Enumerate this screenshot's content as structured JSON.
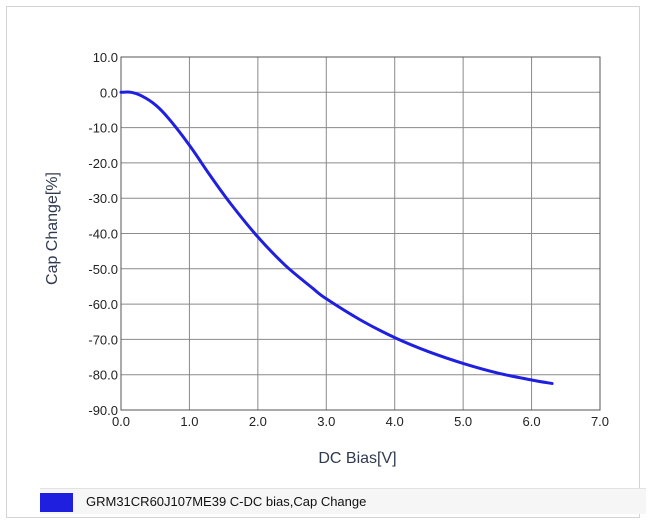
{
  "chart_data": {
    "type": "line",
    "title": "",
    "xlabel": "DC Bias[V]",
    "ylabel": "Cap Change[%]",
    "xlim": [
      0,
      7
    ],
    "ylim": [
      -90,
      10
    ],
    "x_ticks": [
      "0.0",
      "1.0",
      "2.0",
      "3.0",
      "4.0",
      "5.0",
      "6.0",
      "7.0"
    ],
    "y_ticks": [
      "10.0",
      "0.0",
      "-10.0",
      "-20.0",
      "-30.0",
      "-40.0",
      "-50.0",
      "-60.0",
      "-70.0",
      "-80.0",
      "-90.0"
    ],
    "grid": true,
    "legend_position": "bottom",
    "series": [
      {
        "name": "GRM31CR60J107ME39 C-DC bias,Cap Change",
        "color": "#1f1fe0",
        "x": [
          0.0,
          0.15,
          0.3,
          0.5,
          0.7,
          1.0,
          1.3,
          1.6,
          2.0,
          2.4,
          2.8,
          3.0,
          3.5,
          4.0,
          4.5,
          5.0,
          5.5,
          6.0,
          6.3
        ],
        "y": [
          0.0,
          0.0,
          -1.0,
          -3.5,
          -7.5,
          -15.0,
          -23.5,
          -31.5,
          -41.0,
          -49.0,
          -55.5,
          -58.5,
          -64.5,
          -69.5,
          -73.5,
          -76.8,
          -79.5,
          -81.5,
          -82.5
        ]
      }
    ]
  }
}
